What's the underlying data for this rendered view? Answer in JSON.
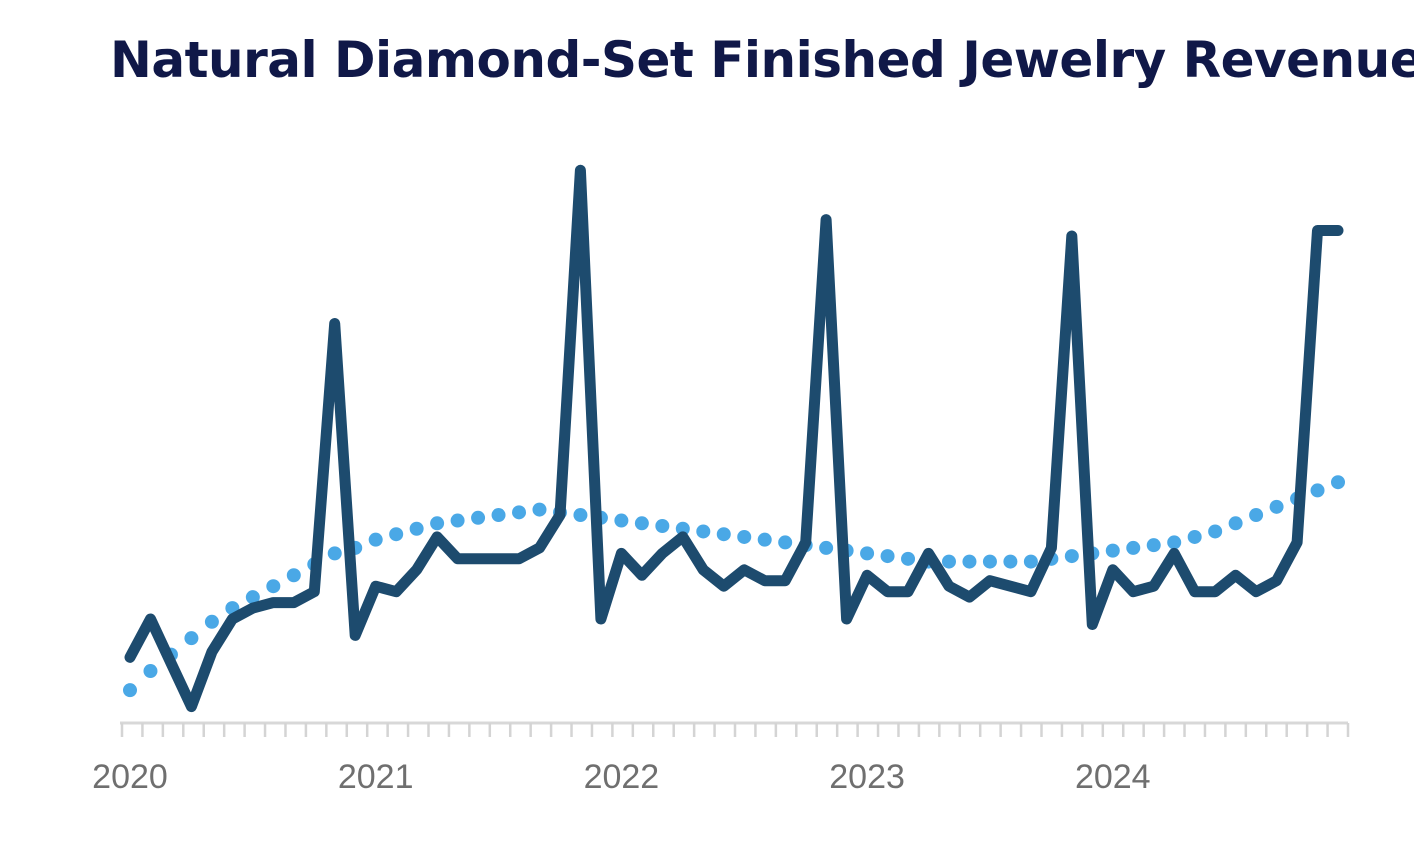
{
  "chart_data": {
    "type": "line",
    "title": "Natural Diamond-Set Finished Jewelry Revenue",
    "xlabel": "",
    "ylabel": "",
    "x_tick_labels": [
      "2020",
      "2021",
      "2022",
      "2023",
      "2024"
    ],
    "x_range": [
      "2020-01",
      "2024-12"
    ],
    "ylim": [
      0,
      100
    ],
    "grid": false,
    "legend": "none",
    "series": [
      {
        "style": "solid",
        "color": "#1d4b6e",
        "x": [
          "2020-01",
          "2020-02",
          "2020-03",
          "2020-04",
          "2020-05",
          "2020-06",
          "2020-07",
          "2020-08",
          "2020-09",
          "2020-10",
          "2020-11",
          "2020-12",
          "2021-01",
          "2021-02",
          "2021-03",
          "2021-04",
          "2021-05",
          "2021-06",
          "2021-07",
          "2021-08",
          "2021-09",
          "2021-10",
          "2021-11",
          "2021-12",
          "2022-01",
          "2022-02",
          "2022-03",
          "2022-04",
          "2022-05",
          "2022-06",
          "2022-07",
          "2022-08",
          "2022-09",
          "2022-10",
          "2022-11",
          "2022-12",
          "2023-01",
          "2023-02",
          "2023-03",
          "2023-04",
          "2023-05",
          "2023-06",
          "2023-07",
          "2023-08",
          "2023-09",
          "2023-10",
          "2023-11",
          "2023-12",
          "2024-01",
          "2024-02",
          "2024-03",
          "2024-04",
          "2024-05",
          "2024-06",
          "2024-07",
          "2024-08",
          "2024-09",
          "2024-10",
          "2024-11",
          "2024-12"
        ],
        "values": [
          12,
          19,
          11,
          3,
          13,
          19,
          21,
          22,
          22,
          24,
          73,
          16,
          25,
          24,
          28,
          34,
          30,
          30,
          30,
          30,
          32,
          38,
          101,
          19,
          31,
          27,
          31,
          34,
          28,
          25,
          28,
          26,
          26,
          33,
          92,
          19,
          27,
          24,
          24,
          31,
          25,
          23,
          26,
          25,
          24,
          32,
          89,
          18,
          28,
          24,
          25,
          31,
          24,
          24,
          27,
          24,
          26,
          33,
          90,
          90
        ]
      },
      {
        "style": "dotted",
        "color": "#4aa8e6",
        "x": [
          "2020-01",
          "2020-02",
          "2020-03",
          "2020-04",
          "2020-05",
          "2020-06",
          "2020-07",
          "2020-08",
          "2020-09",
          "2020-10",
          "2020-11",
          "2020-12",
          "2021-01",
          "2021-02",
          "2021-03",
          "2021-04",
          "2021-05",
          "2021-06",
          "2021-07",
          "2021-08",
          "2021-09",
          "2021-10",
          "2021-11",
          "2021-12",
          "2022-01",
          "2022-02",
          "2022-03",
          "2022-04",
          "2022-05",
          "2022-06",
          "2022-07",
          "2022-08",
          "2022-09",
          "2022-10",
          "2022-11",
          "2022-12",
          "2023-01",
          "2023-02",
          "2023-03",
          "2023-04",
          "2023-05",
          "2023-06",
          "2023-07",
          "2023-08",
          "2023-09",
          "2023-10",
          "2023-11",
          "2023-12",
          "2024-01",
          "2024-02",
          "2024-03",
          "2024-04",
          "2024-05",
          "2024-06",
          "2024-07",
          "2024-08",
          "2024-09",
          "2024-10",
          "2024-11",
          "2024-12"
        ],
        "values": [
          6,
          9.5,
          12.5,
          15.5,
          18.5,
          21,
          23,
          25,
          27,
          29,
          31,
          32,
          33.5,
          34.5,
          35.5,
          36.5,
          37,
          37.5,
          38,
          38.5,
          39,
          38.5,
          38,
          37.5,
          37,
          36.5,
          36,
          35.5,
          35,
          34.5,
          34,
          33.5,
          33,
          32.5,
          32,
          31.5,
          31,
          30.5,
          30,
          29.5,
          29.5,
          29.5,
          29.5,
          29.5,
          29.5,
          30,
          30.5,
          31,
          31.5,
          32,
          32.5,
          33,
          34,
          35,
          36.5,
          38,
          39.5,
          41,
          42.5,
          44
        ]
      }
    ]
  }
}
